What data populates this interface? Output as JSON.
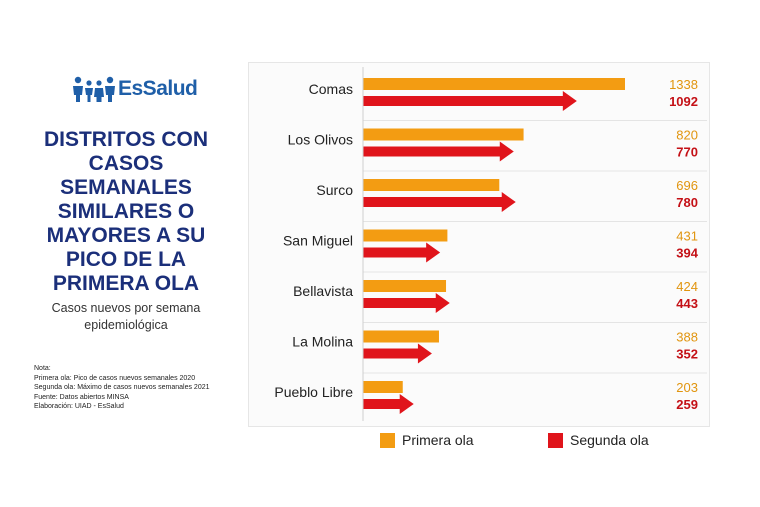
{
  "logo": {
    "text": "EsSalud"
  },
  "title": "DISTRITOS CON CASOS SEMANALES SIMILARES O MAYORES A SU PICO DE LA PRIMERA OLA",
  "subtitle": "Casos nuevos por semana epidemiológica",
  "notes": [
    "Nota:",
    "Primera ola: Pico de casos nuevos semanales 2020",
    "Segunda ola: Máximo de casos nuevos semanales 2021",
    "Fuente: Datos abiertos MINSA",
    "Elaboración: UIAD - EsSalud"
  ],
  "colors": {
    "primera": "#f39c12",
    "segunda": "#e0141b",
    "primera_text": "#e1950f",
    "segunda_text": "#c41016",
    "title": "#1b2f7a",
    "logo": "#1f5fa8"
  },
  "chart_data": {
    "type": "bar",
    "orientation": "horizontal",
    "title": "DISTRITOS CON CASOS SEMANALES SIMILARES O MAYORES A SU PICO DE LA PRIMERA OLA",
    "categories": [
      "Comas",
      "Los Olivos",
      "Surco",
      "San Miguel",
      "Bellavista",
      "La Molina",
      "Pueblo Libre"
    ],
    "series": [
      {
        "name": "Primera ola",
        "values": [
          1338,
          820,
          696,
          431,
          424,
          388,
          203
        ]
      },
      {
        "name": "Segunda ola",
        "values": [
          1092,
          770,
          780,
          394,
          443,
          352,
          259
        ]
      }
    ],
    "xlim": [
      0,
      1338
    ],
    "legend": "bottom",
    "grid": false
  }
}
